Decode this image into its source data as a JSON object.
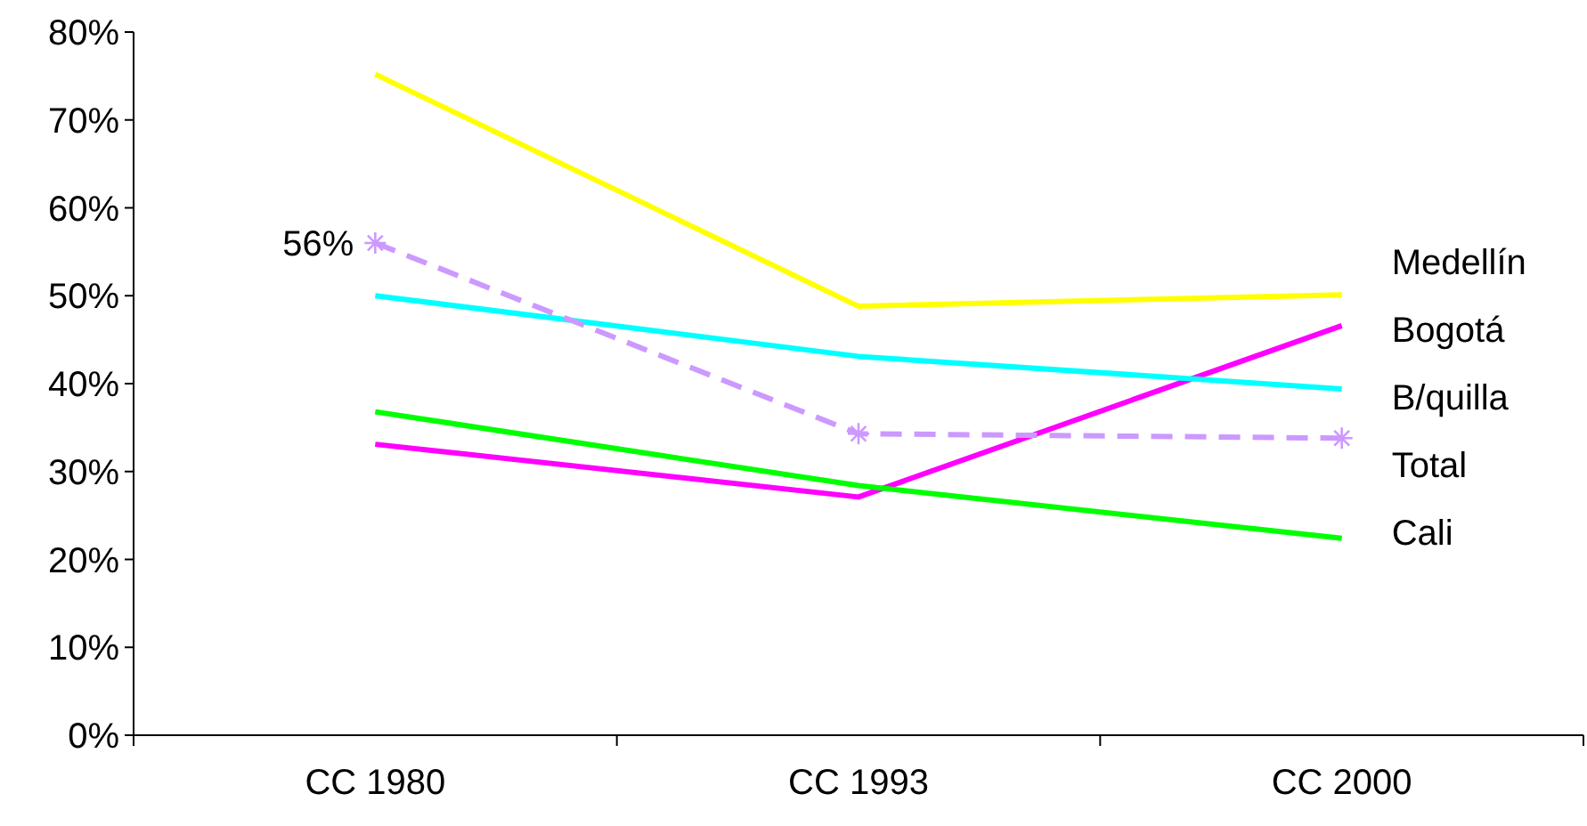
{
  "chart_data": {
    "type": "line",
    "categories": [
      "CC 1980",
      "CC 1993",
      "CC 2000"
    ],
    "ylim": [
      0,
      80
    ],
    "yticks": [
      {
        "value": 0,
        "label": "0%"
      },
      {
        "value": 10,
        "label": "10%"
      },
      {
        "value": 20,
        "label": "20%"
      },
      {
        "value": 30,
        "label": "30%"
      },
      {
        "value": 40,
        "label": "40%"
      },
      {
        "value": 50,
        "label": "50%"
      },
      {
        "value": 60,
        "label": "60%"
      },
      {
        "value": 70,
        "label": "70%"
      },
      {
        "value": 80,
        "label": "80%"
      }
    ],
    "grid": false,
    "series": [
      {
        "name": "Medellín",
        "color": "#ffff00",
        "values": [
          75.2,
          48.8,
          50.1
        ]
      },
      {
        "name": "Bogotá",
        "color": "#ff00ff",
        "values": [
          33.1,
          27.1,
          46.6
        ]
      },
      {
        "name": "B/quilla",
        "color": "#00ffff",
        "values": [
          50,
          43.1,
          39.4
        ]
      },
      {
        "name": "Total",
        "color": "#cc99ff",
        "values": [
          56,
          34.3,
          33.8
        ],
        "value_labels": [
          "56%",
          null,
          null
        ],
        "line_style": "dashed",
        "marker": "cross"
      },
      {
        "name": "Cali",
        "color": "#00ff00",
        "values": [
          36.8,
          28.4,
          22.4
        ]
      }
    ]
  }
}
